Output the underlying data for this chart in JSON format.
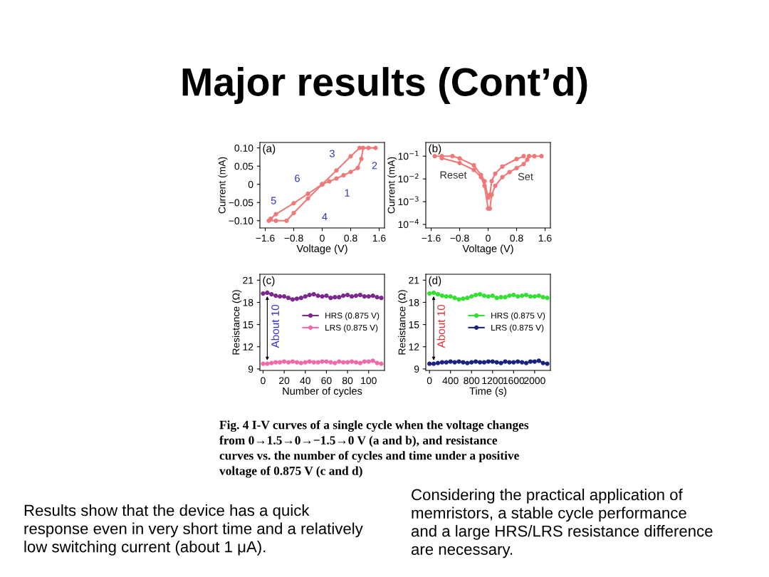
{
  "chart_data": [
    {
      "type": "other",
      "title": "Major results (Cont’d)",
      "annotations": [
        "Fig. 4 I-V curves of a single cycle when the voltage changes\nfrom 0→1.5→0→−1.5→0 V (a and b), and resistance\ncurves vs. the number of cycles and time under a positive\nvoltage of 0.875 V (c and d)",
        "Results show that the device has a quick\nresponse even in very short time and a relatively\nlow switching current (about 1 μA).",
        "Considering the practical application of\nmemristors, a stable cycle performance\nand a large HRS/LRS resistance difference\nare necessary."
      ]
    },
    {
      "type": "line",
      "title": "(a)",
      "xlabel": "Voltage (V)",
      "ylabel": "Current (mA)",
      "marker": "circle",
      "xlim": [
        -1.75,
        1.75
      ],
      "xticks": [
        -1.6,
        -0.8,
        0,
        0.8,
        1.6
      ],
      "ylim": [
        -0.12,
        0.115
      ],
      "yticks": [
        {
          "value": -0.1,
          "label": "−0.10"
        },
        {
          "value": -0.05,
          "label": "−0.05"
        },
        0,
        {
          "value": 0.05,
          "label": "0.05"
        },
        {
          "value": 0.1,
          "label": "0.10"
        }
      ],
      "series": [
        {
          "color": "#f07878",
          "x": [
            0,
            0.2,
            0.4,
            0.6,
            0.8,
            1.0,
            1.1,
            1.15,
            1.3,
            1.5
          ],
          "values": [
            0,
            0.008,
            0.016,
            0.025,
            0.034,
            0.045,
            0.07,
            0.1,
            0.1,
            0.1
          ]
        },
        {
          "color": "#f07878",
          "x": [
            1.05,
            0.8,
            0.4,
            0,
            -0.4,
            -0.8,
            -1.0,
            -1.3,
            -1.5
          ],
          "values": [
            0.1,
            0.077,
            0.038,
            0,
            -0.039,
            -0.079,
            -0.1,
            -0.1,
            -0.1
          ]
        },
        {
          "color": "#f07878",
          "x": [
            -1.45,
            -1.3,
            -0.8,
            -0.4,
            0
          ],
          "values": [
            -0.095,
            -0.082,
            -0.052,
            -0.026,
            0
          ]
        }
      ],
      "annotations": [
        "1",
        "2",
        "3",
        "4",
        "5",
        "6"
      ]
    },
    {
      "type": "line",
      "title": "(b)",
      "xlabel": "Voltage (V)",
      "ylabel": "Current (mA)",
      "marker": "circle",
      "log": true,
      "xlim": [
        -1.75,
        1.75
      ],
      "xticks": [
        -1.6,
        -0.8,
        0,
        0.8,
        1.6
      ],
      "ylim": [
        7e-05,
        0.4
      ],
      "yticks": [
        {
          "value": 0.0001,
          "label": "10$^{−4}$"
        },
        {
          "value": 0.001,
          "label": "10$^{−3}$"
        },
        {
          "value": 0.01,
          "label": "10$^{−2}$"
        },
        {
          "value": 0.1,
          "label": "10$^{−1}$"
        }
      ],
      "series": [
        {
          "color": "#f07878",
          "x": [
            0.05,
            0.1,
            0.2,
            0.4,
            0.6,
            0.8,
            1.0,
            1.1,
            1.15,
            1.3,
            1.5
          ],
          "values": [
            0.0005,
            0.002,
            0.005,
            0.012,
            0.02,
            0.03,
            0.045,
            0.07,
            0.1,
            0.1,
            0.1
          ]
        },
        {
          "color": "#f07878",
          "x": [
            1.0,
            0.8,
            0.4,
            0.2,
            0.1,
            0.05,
            0,
            -0.1,
            -0.2,
            -0.4,
            -0.8,
            -1.0,
            -1.3,
            -1.5
          ],
          "values": [
            0.1,
            0.075,
            0.035,
            0.017,
            0.008,
            0.002,
            0.0015,
            0.008,
            0.015,
            0.04,
            0.08,
            0.1,
            0.1,
            0.1
          ]
        },
        {
          "color": "#f07878",
          "x": [
            -1.3,
            -0.8,
            -0.4,
            -0.2,
            -0.1,
            0
          ],
          "values": [
            0.082,
            0.05,
            0.025,
            0.012,
            0.005,
            0.0005
          ]
        }
      ],
      "annotations": [
        "Reset",
        "Set"
      ]
    },
    {
      "type": "line",
      "title": "(c)",
      "xlabel": "Number of cycles",
      "ylabel": "Resistance (Ω)",
      "marker": "circle",
      "legend": "right",
      "xlim": [
        -3,
        115
      ],
      "xticks": [
        0,
        20,
        40,
        60,
        80,
        100
      ],
      "ylim": [
        8.8,
        21.8
      ],
      "yticks": [
        9,
        12,
        15,
        18,
        21
      ],
      "x": [
        0,
        4,
        8,
        12,
        16,
        20,
        24,
        28,
        32,
        36,
        40,
        44,
        48,
        52,
        56,
        60,
        64,
        68,
        72,
        76,
        80,
        84,
        88,
        92,
        96,
        100,
        104,
        108,
        112
      ],
      "series": [
        {
          "name": "HRS (0.875 V)",
          "color": "#7b2a8c",
          "values": [
            19.2,
            19.3,
            19.1,
            18.9,
            18.8,
            18.8,
            18.6,
            18.4,
            18.5,
            18.6,
            18.8,
            19.0,
            19.1,
            18.9,
            18.8,
            18.9,
            18.6,
            18.7,
            18.7,
            18.9,
            19.0,
            18.8,
            18.9,
            19.0,
            18.8,
            18.8,
            18.9,
            18.7,
            18.6
          ]
        },
        {
          "name": "LRS (0.875 V)",
          "color": "#f06aa8",
          "values": [
            9.7,
            9.7,
            9.8,
            9.9,
            9.9,
            10.0,
            9.9,
            10.0,
            9.9,
            9.8,
            9.9,
            10.0,
            9.9,
            9.9,
            10.0,
            10.0,
            9.9,
            9.8,
            10.0,
            9.9,
            9.9,
            10.0,
            9.9,
            9.8,
            10.0,
            10.0,
            10.1,
            9.8,
            9.7
          ]
        }
      ],
      "annotations": [
        "About 10"
      ]
    },
    {
      "type": "line",
      "title": "(d)",
      "xlabel": "Time (s)",
      "ylabel": "Resistance (Ω)",
      "marker": "circle",
      "legend": "right",
      "xlim": [
        -70,
        2300
      ],
      "xticks": [
        0,
        400,
        800,
        1200,
        1600,
        2000
      ],
      "ylim": [
        8.8,
        21.8
      ],
      "yticks": [
        9,
        12,
        15,
        18,
        21
      ],
      "x": [
        0,
        80,
        160,
        240,
        320,
        400,
        480,
        560,
        640,
        720,
        800,
        880,
        960,
        1040,
        1120,
        1200,
        1280,
        1360,
        1440,
        1520,
        1600,
        1680,
        1760,
        1840,
        1920,
        2000,
        2080,
        2160,
        2240
      ],
      "series": [
        {
          "name": "HRS (0.875 V)",
          "color": "#33e033",
          "values": [
            19.2,
            19.3,
            19.1,
            18.9,
            18.8,
            18.8,
            18.6,
            18.4,
            18.5,
            18.6,
            18.8,
            19.0,
            19.1,
            18.9,
            18.8,
            18.9,
            18.6,
            18.7,
            18.7,
            18.9,
            19.0,
            18.8,
            18.9,
            19.0,
            18.8,
            18.8,
            18.9,
            18.7,
            18.6
          ]
        },
        {
          "name": "LRS (0.875 V)",
          "color": "#1a237e",
          "values": [
            9.7,
            9.7,
            9.8,
            9.9,
            9.9,
            10.0,
            9.9,
            10.0,
            9.9,
            9.8,
            9.9,
            10.0,
            9.9,
            9.9,
            10.0,
            10.0,
            9.9,
            9.8,
            10.0,
            9.9,
            9.9,
            10.0,
            9.9,
            9.8,
            10.0,
            10.0,
            10.1,
            9.8,
            9.7
          ]
        }
      ],
      "annotations": [
        "About 10"
      ]
    }
  ]
}
